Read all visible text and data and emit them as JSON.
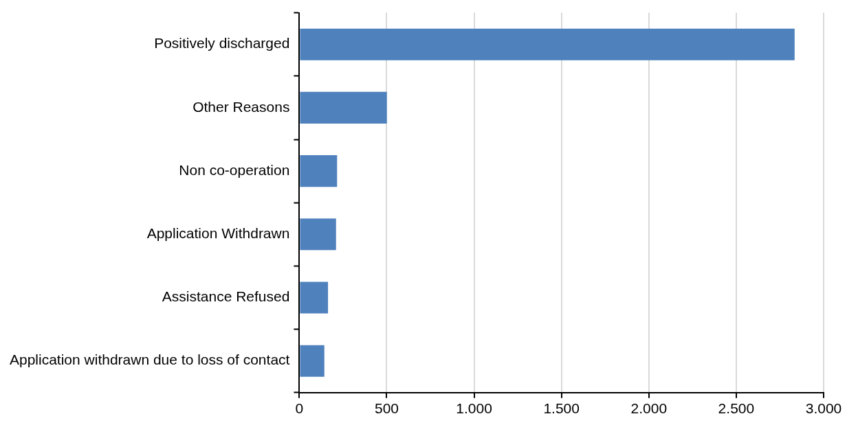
{
  "chart_data": {
    "type": "bar",
    "orientation": "horizontal",
    "categories": [
      "Positively discharged",
      "Other Reasons",
      "Non co-operation",
      "Application Withdrawn",
      "Assistance Refused",
      "Application withdrawn due to loss of contact"
    ],
    "values": [
      2834,
      501,
      216,
      210,
      164,
      143
    ],
    "color": "#4f81bd",
    "xlim": [
      0,
      3000
    ],
    "xticks": [
      0,
      500,
      {
        "value": 1000,
        "label": "1.000"
      },
      {
        "value": 1500,
        "label": "1.500"
      },
      {
        "value": 2000,
        "label": "2.000"
      },
      {
        "value": 2500,
        "label": "2.500"
      },
      {
        "value": 3000,
        "label": "3.000"
      }
    ],
    "grid": "x",
    "legend": false
  }
}
